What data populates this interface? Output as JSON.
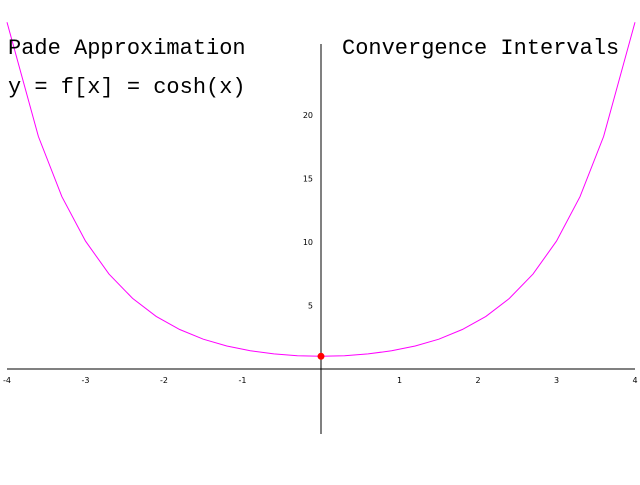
{
  "header": {
    "title_left": "Pade Approximation",
    "title_right": "Convergence Intervals",
    "equation": "y = f[x] = cosh(x)"
  },
  "colors": {
    "curve": "#ff00ff",
    "point": "#ff0000",
    "axes": "#000000",
    "background": "#ffffff"
  },
  "chart_data": {
    "type": "line",
    "title": "",
    "xlabel": "",
    "ylabel": "",
    "xlim": [
      -4,
      4
    ],
    "ylim": [
      -5,
      25
    ],
    "x_ticks": [
      -4,
      -3,
      -2,
      -1,
      1,
      2,
      3,
      4
    ],
    "y_ticks": [
      5,
      10,
      15,
      20
    ],
    "series": [
      {
        "x": [
          -4.0,
          -3.6,
          -3.3,
          -3.0,
          -2.7,
          -2.4,
          -2.1,
          -1.8,
          -1.5,
          -1.2,
          -0.9,
          -0.6,
          -0.3,
          0.0,
          0.3,
          0.6,
          0.9,
          1.2,
          1.5,
          1.8,
          2.1,
          2.4,
          2.7,
          3.0,
          3.3,
          3.6,
          4.0
        ],
        "y": [
          27.31,
          18.31,
          13.57,
          10.07,
          7.47,
          5.56,
          4.14,
          3.11,
          2.35,
          1.81,
          1.43,
          1.19,
          1.05,
          1.0,
          1.05,
          1.19,
          1.43,
          1.81,
          2.35,
          3.11,
          4.14,
          5.56,
          7.47,
          10.07,
          13.57,
          18.31,
          27.31
        ]
      }
    ],
    "highlight_point": {
      "x": 0,
      "y": 1
    }
  }
}
